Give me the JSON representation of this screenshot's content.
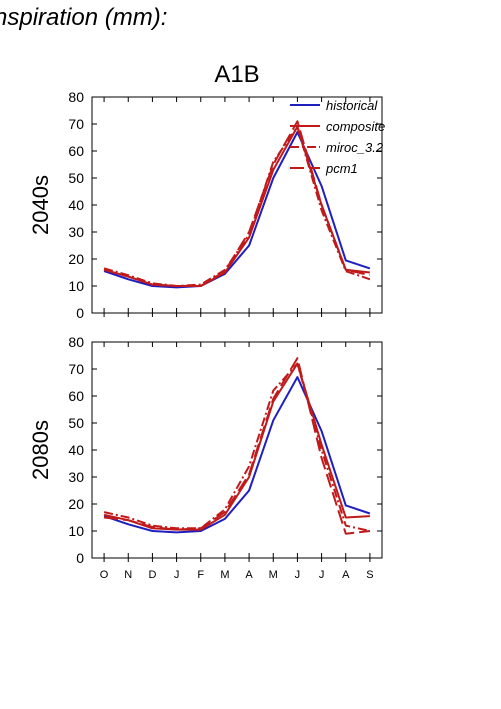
{
  "page": {
    "title": "nspiration (mm):"
  },
  "chart_data": {
    "type": "line",
    "title": "A1B",
    "categories": [
      "O",
      "N",
      "D",
      "J",
      "F",
      "M",
      "A",
      "M",
      "J",
      "J",
      "A",
      "S"
    ],
    "ylim": [
      0,
      80
    ],
    "yticks": [
      0,
      10,
      20,
      30,
      40,
      50,
      60,
      70,
      80
    ],
    "legend_position": "top-right",
    "legend": [
      {
        "name": "historical",
        "color": "#1f1fbf",
        "dash": "solid"
      },
      {
        "name": "composite",
        "color": "#c01a1a",
        "dash": "solid"
      },
      {
        "name": "miroc_3.2",
        "color": "#c01a1a",
        "dash": "dashdot"
      },
      {
        "name": "pcm1",
        "color": "#c01a1a",
        "dash": "longdash"
      }
    ],
    "panels": [
      {
        "label": "2040s",
        "series": [
          {
            "name": "historical",
            "values": [
              15.5,
              12.5,
              10,
              9.5,
              10,
              14.5,
              25,
              50,
              67,
              47,
              19.5,
              16.5
            ]
          },
          {
            "name": "composite",
            "values": [
              16,
              13.5,
              10.5,
              10,
              10,
              15,
              28,
              53,
              69,
              40,
              16,
              15
            ]
          },
          {
            "name": "miroc_3.2",
            "values": [
              16.5,
              14,
              11,
              10,
              10.5,
              16,
              29,
              56,
              69,
              38,
              15.5,
              12.5
            ]
          },
          {
            "name": "pcm1",
            "values": [
              16,
              13.5,
              10.5,
              10,
              10,
              15.5,
              30,
              55,
              71,
              40,
              16,
              14
            ]
          }
        ]
      },
      {
        "label": "2080s",
        "series": [
          {
            "name": "historical",
            "values": [
              15.5,
              12.5,
              10,
              9.5,
              10,
              14.5,
              25,
              51,
              67,
              47,
              19.5,
              16.5
            ]
          },
          {
            "name": "composite",
            "values": [
              16,
              14,
              11,
              10.5,
              10.5,
              16,
              30,
              58,
              72,
              42,
              15,
              15.5
            ]
          },
          {
            "name": "miroc_3.2",
            "values": [
              17,
              15,
              12,
              11,
              11,
              18,
              34,
              62,
              72,
              40,
              12,
              10
            ]
          },
          {
            "name": "pcm1",
            "values": [
              15,
              14,
              11.5,
              10.5,
              11,
              17,
              31,
              59,
              74,
              37,
              9,
              10
            ]
          }
        ]
      }
    ]
  }
}
